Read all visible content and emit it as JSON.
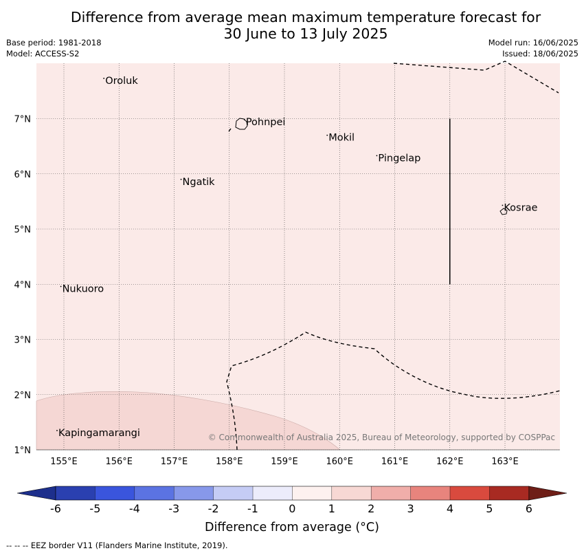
{
  "title_line1": "Difference from average mean maximum temperature forecast for",
  "title_line2": "30 June to 13 July 2025",
  "base_period": "Base period: 1981-2018",
  "model": "Model: ACCESS-S2",
  "model_run": "Model run: 16/06/2025",
  "issued": "Issued: 18/06/2025",
  "copyright": "© Commonwealth of Australia 2025, Bureau of Meteorology, supported by COSPPac",
  "footnote": "--  --  -- EEZ border V11 (Flanders Marine Institute, 2019).",
  "map": {
    "lon_range": [
      154.5,
      164.0
    ],
    "lat_range": [
      1.0,
      8.0
    ],
    "lat_ticks": [
      {
        "value": 1,
        "label": "1°N"
      },
      {
        "value": 2,
        "label": "2°N"
      },
      {
        "value": 3,
        "label": "3°N"
      },
      {
        "value": 4,
        "label": "4°N"
      },
      {
        "value": 5,
        "label": "5°N"
      },
      {
        "value": 6,
        "label": "6°N"
      },
      {
        "value": 7,
        "label": "7°N"
      }
    ],
    "lon_ticks": [
      {
        "value": 155,
        "label": "155°E"
      },
      {
        "value": 156,
        "label": "156°E"
      },
      {
        "value": 157,
        "label": "157°E"
      },
      {
        "value": 158,
        "label": "158°E"
      },
      {
        "value": 159,
        "label": "159°E"
      },
      {
        "value": 160,
        "label": "160°E"
      },
      {
        "value": 161,
        "label": "161°E"
      },
      {
        "value": 162,
        "label": "162°E"
      },
      {
        "value": 163,
        "label": "163°E"
      }
    ],
    "places": [
      {
        "name": "Oroluk",
        "lon": 155.75,
        "lat": 7.63
      },
      {
        "name": "Pohnpei",
        "lon": 158.3,
        "lat": 6.88
      },
      {
        "name": "Mokil",
        "lon": 159.8,
        "lat": 6.6
      },
      {
        "name": "Pingelap",
        "lon": 160.7,
        "lat": 6.23
      },
      {
        "name": "Ngatik",
        "lon": 157.15,
        "lat": 5.8
      },
      {
        "name": "Kosrae",
        "lon": 162.98,
        "lat": 5.33
      },
      {
        "name": "Nukuoro",
        "lon": 154.97,
        "lat": 3.86
      },
      {
        "name": "Kapingamarangi",
        "lon": 154.9,
        "lat": 1.25
      }
    ],
    "base_class_color": "#fbeae8",
    "region_1_2_color": "#f5d7d4"
  },
  "colorbar": {
    "title": "Difference from average (°C)",
    "ticks": [
      "-6",
      "-5",
      "-4",
      "-3",
      "-2",
      "-1",
      "0",
      "1",
      "2",
      "3",
      "4",
      "5",
      "6"
    ],
    "colors": [
      "#1d2f8c",
      "#2a40b0",
      "#3a55dd",
      "#5b73e2",
      "#8798ea",
      "#c5ccf5",
      "#ececfb",
      "#fdf1ef",
      "#f7d8d4",
      "#f0aeaa",
      "#e8847d",
      "#d94a3e",
      "#a82a22",
      "#6e1e17"
    ]
  }
}
